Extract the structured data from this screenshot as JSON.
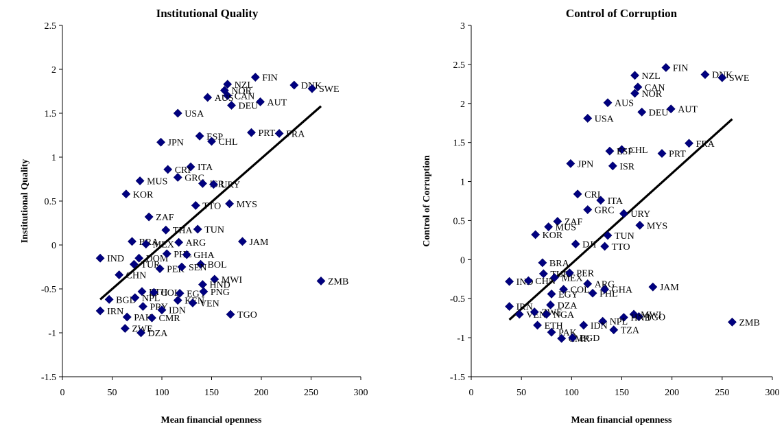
{
  "chart_data": [
    {
      "type": "scatter",
      "title": "Institutional Quality",
      "xlabel": "Mean financial openness",
      "ylabel": "Institutional Quality",
      "xlim": [
        0,
        300
      ],
      "ylim": [
        -1.5,
        2.5
      ],
      "xticks": [
        "0",
        "50",
        "100",
        "150",
        "200",
        "250",
        "300"
      ],
      "yticks": [
        "-1.5",
        "-1",
        "-0.5",
        "0",
        "0.5",
        "1",
        "1.5",
        "2",
        "2.5"
      ],
      "points": [
        {
          "label": "FIN",
          "x": 194,
          "y": 1.91
        },
        {
          "label": "NZL",
          "x": 166,
          "y": 1.83
        },
        {
          "label": "DNK",
          "x": 233,
          "y": 1.82
        },
        {
          "label": "SWE",
          "x": 251,
          "y": 1.78
        },
        {
          "label": "NOR",
          "x": 163,
          "y": 1.76
        },
        {
          "label": "CAN",
          "x": 166,
          "y": 1.7
        },
        {
          "label": "AUS",
          "x": 146,
          "y": 1.68
        },
        {
          "label": "AUT",
          "x": 199,
          "y": 1.63
        },
        {
          "label": "DEU",
          "x": 170,
          "y": 1.59
        },
        {
          "label": "USA",
          "x": 116,
          "y": 1.5
        },
        {
          "label": "PRT",
          "x": 190,
          "y": 1.28
        },
        {
          "label": "FRA",
          "x": 218,
          "y": 1.27
        },
        {
          "label": "ESP",
          "x": 138,
          "y": 1.24
        },
        {
          "label": "CHL",
          "x": 150,
          "y": 1.18
        },
        {
          "label": "JPN",
          "x": 99,
          "y": 1.17
        },
        {
          "label": "ITA",
          "x": 129,
          "y": 0.89
        },
        {
          "label": "CRI",
          "x": 106,
          "y": 0.86
        },
        {
          "label": "GRC",
          "x": 116,
          "y": 0.77
        },
        {
          "label": "MUS",
          "x": 78,
          "y": 0.73
        },
        {
          "label": "ISR",
          "x": 141,
          "y": 0.7
        },
        {
          "label": "URY",
          "x": 152,
          "y": 0.69
        },
        {
          "label": "KOR",
          "x": 64,
          "y": 0.58
        },
        {
          "label": "MYS",
          "x": 168,
          "y": 0.47
        },
        {
          "label": "TTO",
          "x": 134,
          "y": 0.45
        },
        {
          "label": "ZAF",
          "x": 87,
          "y": 0.32
        },
        {
          "label": "THA",
          "x": 104,
          "y": 0.17
        },
        {
          "label": "TUN",
          "x": 136,
          "y": 0.18
        },
        {
          "label": "BRA",
          "x": 70,
          "y": 0.04
        },
        {
          "label": "MEX",
          "x": 84,
          "y": 0.01
        },
        {
          "label": "ARG",
          "x": 117,
          "y": 0.03
        },
        {
          "label": "JAM",
          "x": 181,
          "y": 0.04
        },
        {
          "label": "IND",
          "x": 38,
          "y": -0.15
        },
        {
          "label": "DOM",
          "x": 77,
          "y": -0.15
        },
        {
          "label": "PHL",
          "x": 105,
          "y": -0.1
        },
        {
          "label": "GHA",
          "x": 125,
          "y": -0.11
        },
        {
          "label": "BOL",
          "x": 139,
          "y": -0.22
        },
        {
          "label": "TUR",
          "x": 72,
          "y": -0.22
        },
        {
          "label": "PER",
          "x": 98,
          "y": -0.27
        },
        {
          "label": "SEN",
          "x": 120,
          "y": -0.25
        },
        {
          "label": "CHN",
          "x": 57,
          "y": -0.34
        },
        {
          "label": "ZMB",
          "x": 260,
          "y": -0.41
        },
        {
          "label": "MWI",
          "x": 153,
          "y": -0.39
        },
        {
          "label": "HND",
          "x": 141,
          "y": -0.45
        },
        {
          "label": "ETH",
          "x": 80,
          "y": -0.53
        },
        {
          "label": "COL",
          "x": 92,
          "y": -0.54
        },
        {
          "label": "EGY",
          "x": 118,
          "y": -0.55
        },
        {
          "label": "PNG",
          "x": 142,
          "y": -0.53
        },
        {
          "label": "BGD",
          "x": 47,
          "y": -0.62
        },
        {
          "label": "NPL",
          "x": 73,
          "y": -0.6
        },
        {
          "label": "KEN",
          "x": 116,
          "y": -0.63
        },
        {
          "label": "VEN",
          "x": 131,
          "y": -0.66
        },
        {
          "label": "IRN",
          "x": 38,
          "y": -0.75
        },
        {
          "label": "PRY",
          "x": 81,
          "y": -0.7
        },
        {
          "label": "IDN",
          "x": 100,
          "y": -0.74
        },
        {
          "label": "PAK",
          "x": 65,
          "y": -0.82
        },
        {
          "label": "CMR",
          "x": 90,
          "y": -0.83
        },
        {
          "label": "TGO",
          "x": 169,
          "y": -0.79
        },
        {
          "label": "ZWE",
          "x": 63,
          "y": -0.95
        },
        {
          "label": "DZA",
          "x": 79,
          "y": -1.0
        }
      ],
      "trendline": {
        "x": [
          38,
          260
        ],
        "y": [
          -0.62,
          1.58
        ]
      }
    },
    {
      "type": "scatter",
      "title": "Control of Corruption",
      "xlabel": "Mean financial openness",
      "ylabel": "Control of Corruption",
      "xlim": [
        0,
        300
      ],
      "ylim": [
        -1.5,
        3
      ],
      "xticks": [
        "0",
        "50",
        "100",
        "150",
        "200",
        "250",
        "300"
      ],
      "yticks": [
        "-1.5",
        "-1",
        "-0.5",
        "0",
        "0.5",
        "1",
        "1.5",
        "2",
        "2.5",
        "3"
      ],
      "points": [
        {
          "label": "FIN",
          "x": 194,
          "y": 2.46
        },
        {
          "label": "NZL",
          "x": 163,
          "y": 2.36
        },
        {
          "label": "DNK",
          "x": 233,
          "y": 2.37
        },
        {
          "label": "SWE",
          "x": 250,
          "y": 2.33
        },
        {
          "label": "CAN",
          "x": 166,
          "y": 2.21
        },
        {
          "label": "NOR",
          "x": 163,
          "y": 2.13
        },
        {
          "label": "AUS",
          "x": 136,
          "y": 2.01
        },
        {
          "label": "AUT",
          "x": 199,
          "y": 1.93
        },
        {
          "label": "DEU",
          "x": 170,
          "y": 1.89
        },
        {
          "label": "USA",
          "x": 116,
          "y": 1.81
        },
        {
          "label": "FRA",
          "x": 217,
          "y": 1.49
        },
        {
          "label": "CHL",
          "x": 150,
          "y": 1.41
        },
        {
          "label": "ESP",
          "x": 138,
          "y": 1.39
        },
        {
          "label": "PRT",
          "x": 190,
          "y": 1.36
        },
        {
          "label": "JPN",
          "x": 99,
          "y": 1.23
        },
        {
          "label": "ISR",
          "x": 141,
          "y": 1.2
        },
        {
          "label": "CRI",
          "x": 106,
          "y": 0.84
        },
        {
          "label": "ITA",
          "x": 129,
          "y": 0.76
        },
        {
          "label": "GRC",
          "x": 116,
          "y": 0.64
        },
        {
          "label": "URY",
          "x": 152,
          "y": 0.59
        },
        {
          "label": "ZAF",
          "x": 86,
          "y": 0.49
        },
        {
          "label": "MYS",
          "x": 168,
          "y": 0.44
        },
        {
          "label": "MUS",
          "x": 77,
          "y": 0.42
        },
        {
          "label": "KOR",
          "x": 64,
          "y": 0.32
        },
        {
          "label": "TUN",
          "x": 136,
          "y": 0.31
        },
        {
          "label": "DJI",
          "x": 104,
          "y": 0.2
        },
        {
          "label": "TTO",
          "x": 133,
          "y": 0.17
        },
        {
          "label": "BRA",
          "x": 71,
          "y": -0.04
        },
        {
          "label": "IND",
          "x": 38,
          "y": -0.28
        },
        {
          "label": "CHN",
          "x": 57,
          "y": -0.27
        },
        {
          "label": "TUR",
          "x": 72,
          "y": -0.18
        },
        {
          "label": "MEX",
          "x": 83,
          "y": -0.23
        },
        {
          "label": "PER",
          "x": 98,
          "y": -0.17
        },
        {
          "label": "ARG",
          "x": 116,
          "y": -0.31
        },
        {
          "label": "COL",
          "x": 92,
          "y": -0.38
        },
        {
          "label": "EGY",
          "x": 80,
          "y": -0.44
        },
        {
          "label": "PHL",
          "x": 121,
          "y": -0.43
        },
        {
          "label": "GHA",
          "x": 133,
          "y": -0.38
        },
        {
          "label": "JAM",
          "x": 181,
          "y": -0.35
        },
        {
          "label": "DZA",
          "x": 79,
          "y": -0.58
        },
        {
          "label": "IRN",
          "x": 38,
          "y": -0.6
        },
        {
          "label": "VEN",
          "x": 48,
          "y": -0.7
        },
        {
          "label": "ZWE",
          "x": 63,
          "y": -0.67
        },
        {
          "label": "NGA",
          "x": 75,
          "y": -0.7
        },
        {
          "label": "ETH",
          "x": 66,
          "y": -0.84
        },
        {
          "label": "MWI",
          "x": 162,
          "y": -0.7
        },
        {
          "label": "TGO",
          "x": 167,
          "y": -0.73
        },
        {
          "label": "HND",
          "x": 152,
          "y": -0.74
        },
        {
          "label": "NPL",
          "x": 131,
          "y": -0.79
        },
        {
          "label": "ZMB",
          "x": 260,
          "y": -0.8
        },
        {
          "label": "PAK",
          "x": 80,
          "y": -0.93
        },
        {
          "label": "TZA",
          "x": 142,
          "y": -0.9
        },
        {
          "label": "IDN",
          "x": 112,
          "y": -0.84
        },
        {
          "label": "CMR",
          "x": 90,
          "y": -1.01
        },
        {
          "label": "BGD",
          "x": 101,
          "y": -1.0
        }
      ],
      "trendline": {
        "x": [
          38,
          260
        ],
        "y": [
          -0.77,
          1.8
        ]
      }
    }
  ]
}
